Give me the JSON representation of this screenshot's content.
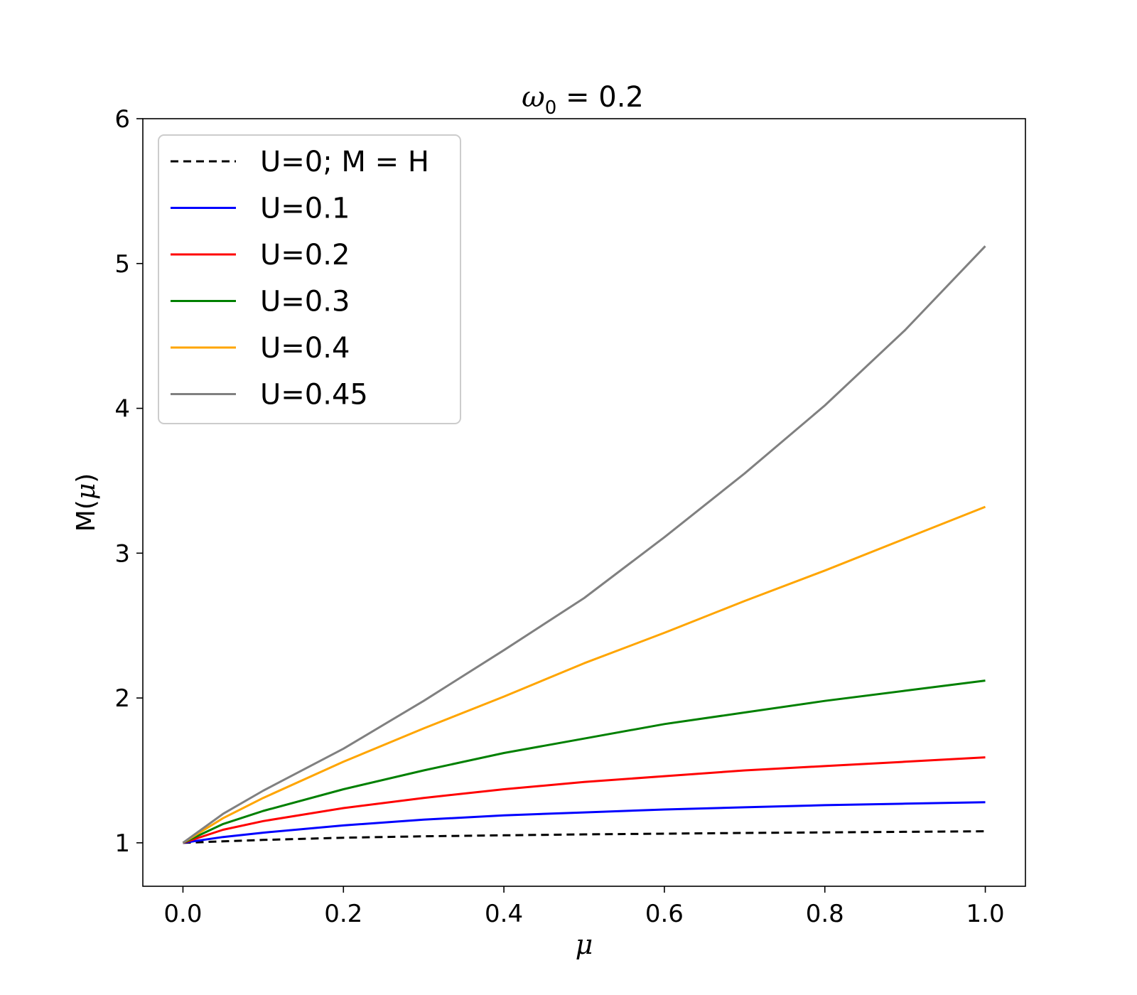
{
  "chart_data": {
    "type": "line",
    "title": {
      "symbol": "ω",
      "subscript": "0",
      "rest": " = 0.2"
    },
    "xlabel": "μ",
    "ylabel": {
      "prefix": "M(",
      "symbol": "μ",
      "suffix": ")"
    },
    "xlim": [
      -0.05,
      1.05
    ],
    "ylim": [
      0.7,
      6.0
    ],
    "xticks": [
      0.0,
      0.2,
      0.4,
      0.6,
      0.8,
      1.0
    ],
    "xtick_labels": [
      "0.0",
      "0.2",
      "0.4",
      "0.6",
      "0.8",
      "1.0"
    ],
    "yticks": [
      1,
      2,
      3,
      4,
      5,
      6
    ],
    "ytick_labels": [
      "1",
      "2",
      "3",
      "4",
      "5",
      "6"
    ],
    "grid": false,
    "legend_position": "top-left",
    "x": [
      0.0,
      0.05,
      0.1,
      0.2,
      0.3,
      0.4,
      0.5,
      0.6,
      0.7,
      0.8,
      0.9,
      1.0
    ],
    "series": [
      {
        "name": "U=0; M = H",
        "color": "#000000",
        "dashed": true,
        "values": [
          1.0,
          1.01,
          1.02,
          1.035,
          1.045,
          1.052,
          1.058,
          1.063,
          1.068,
          1.072,
          1.076,
          1.08
        ]
      },
      {
        "name": "U=0.1",
        "color": "#0000ff",
        "dashed": false,
        "values": [
          1.0,
          1.04,
          1.07,
          1.12,
          1.16,
          1.19,
          1.21,
          1.23,
          1.245,
          1.26,
          1.27,
          1.28
        ]
      },
      {
        "name": "U=0.2",
        "color": "#ff0000",
        "dashed": false,
        "values": [
          1.0,
          1.09,
          1.15,
          1.24,
          1.31,
          1.37,
          1.42,
          1.46,
          1.5,
          1.53,
          1.56,
          1.59
        ]
      },
      {
        "name": "U=0.3",
        "color": "#008000",
        "dashed": false,
        "values": [
          1.0,
          1.13,
          1.22,
          1.37,
          1.5,
          1.62,
          1.72,
          1.82,
          1.9,
          1.98,
          2.05,
          2.12
        ]
      },
      {
        "name": "U=0.4",
        "color": "#ffa500",
        "dashed": false,
        "values": [
          1.0,
          1.17,
          1.31,
          1.56,
          1.79,
          2.01,
          2.24,
          2.45,
          2.67,
          2.88,
          3.1,
          3.32
        ]
      },
      {
        "name": "U=0.45",
        "color": "#808080",
        "dashed": false,
        "values": [
          1.0,
          1.2,
          1.36,
          1.65,
          1.98,
          2.33,
          2.69,
          3.11,
          3.55,
          4.02,
          4.54,
          5.12
        ]
      }
    ]
  }
}
